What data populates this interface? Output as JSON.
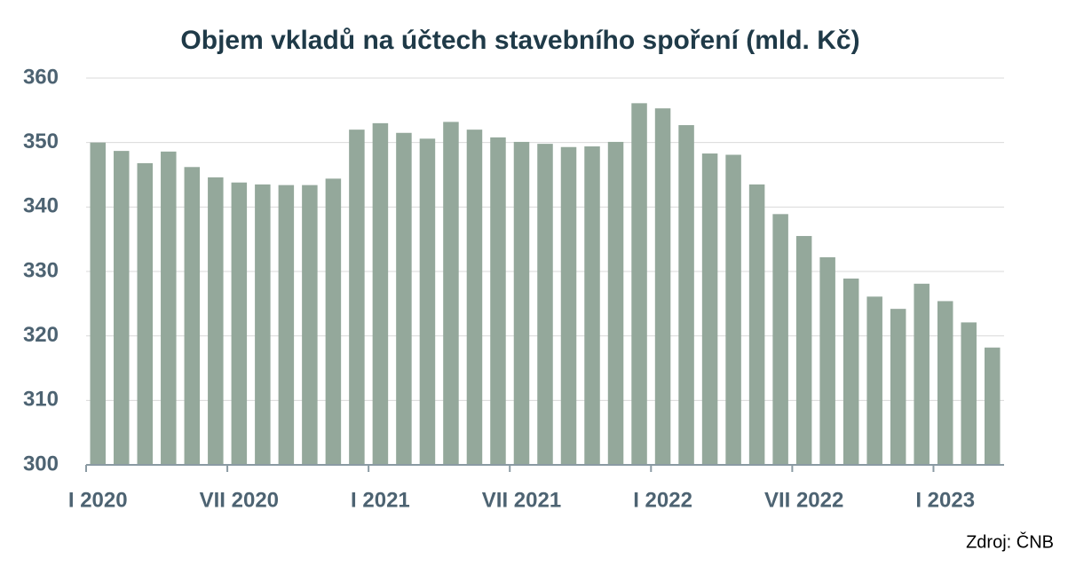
{
  "chart_data": {
    "type": "bar",
    "title": "Objem vkladů na účtech stavebního spoření (mld. Kč)",
    "source": "Zdroj: ČNB",
    "categories": [
      "I 2020",
      null,
      null,
      null,
      null,
      null,
      "VII 2020",
      null,
      null,
      null,
      null,
      null,
      "I 2021",
      null,
      null,
      null,
      null,
      null,
      "VII 2021",
      null,
      null,
      null,
      null,
      null,
      "I 2022",
      null,
      null,
      null,
      null,
      null,
      "VII 2022",
      null,
      null,
      null,
      null,
      null,
      "I 2023",
      null,
      null
    ],
    "values": [
      350.0,
      348.7,
      346.8,
      348.6,
      346.2,
      344.6,
      343.8,
      343.5,
      343.4,
      343.4,
      344.4,
      352.0,
      353.0,
      351.5,
      350.6,
      353.2,
      352.0,
      350.8,
      350.1,
      349.8,
      349.3,
      349.4,
      350.1,
      356.1,
      355.3,
      352.7,
      348.3,
      348.1,
      343.5,
      338.9,
      335.5,
      332.2,
      328.9,
      326.1,
      324.2,
      328.1,
      325.4,
      322.1,
      318.2
    ],
    "color": "#94a89b",
    "ylim": [
      300,
      360
    ],
    "yticks": [
      300,
      310,
      320,
      330,
      340,
      350,
      360
    ],
    "grid": true
  }
}
